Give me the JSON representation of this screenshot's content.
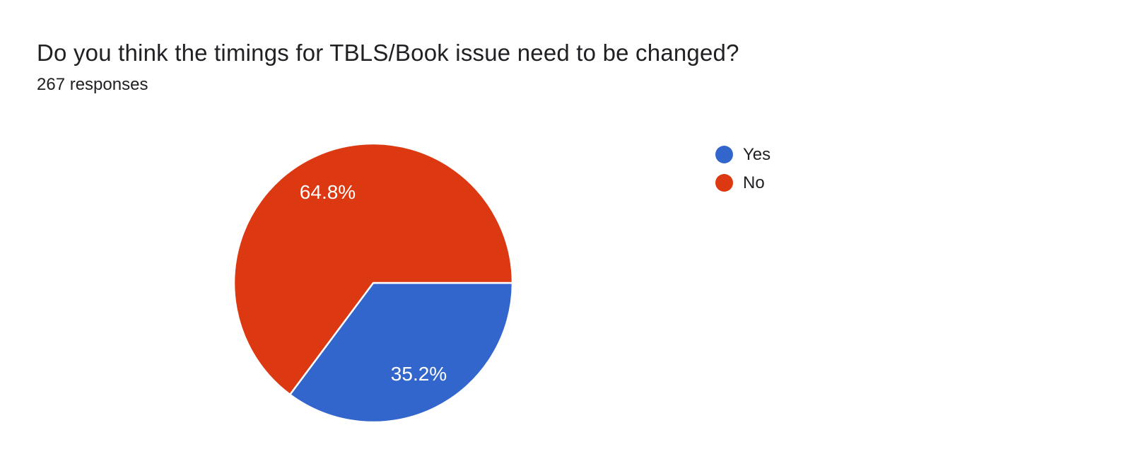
{
  "header": {
    "title": "Do you think the timings for TBLS/Book issue need to be changed?",
    "responses": "267 responses"
  },
  "chart_data": {
    "type": "pie",
    "title": "Do you think the timings for TBLS/Book issue need to be changed?",
    "subtitle": "267 responses",
    "total_responses": 267,
    "start_angle_deg": 0,
    "direction": "clockwise",
    "legend_position": "right",
    "slice_border_color": "#ffffff",
    "slices": [
      {
        "label": "Yes",
        "value_pct": 35.2,
        "data_label": "35.2%",
        "color": "#3366CC"
      },
      {
        "label": "No",
        "value_pct": 64.8,
        "data_label": "64.8%",
        "color": "#DC3912"
      }
    ]
  },
  "legend": {
    "items": [
      {
        "label": "Yes",
        "color": "#3366CC"
      },
      {
        "label": "No",
        "color": "#DC3912"
      }
    ]
  }
}
